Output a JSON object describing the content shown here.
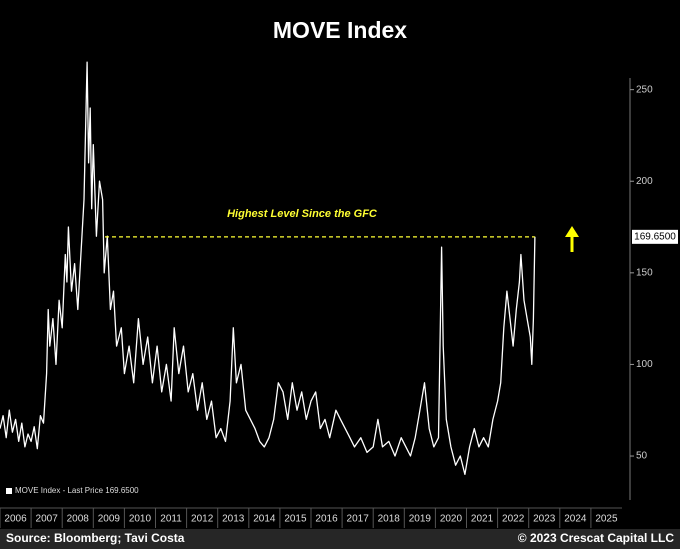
{
  "chart_data": {
    "type": "line",
    "title": "MOVE Index",
    "annotation": "Highest Level Since the GFC",
    "legend_label": "MOVE Index - Last Price 169.6500",
    "last_value_label": {
      "value": 169.65,
      "label": "169.6500"
    },
    "source": "Source: Bloomberg; Tavi Costa",
    "copyright": "© 2023 Crescat Capital LLC",
    "xlim": [
      2006,
      2026
    ],
    "xticks": [
      2006,
      2007,
      2008,
      2009,
      2010,
      2011,
      2012,
      2013,
      2014,
      2015,
      2016,
      2017,
      2018,
      2019,
      2020,
      2021,
      2022,
      2023,
      2024,
      2025
    ],
    "ylim": [
      26,
      270
    ],
    "yticks": [
      50,
      100,
      150,
      200,
      250
    ],
    "series": [
      {
        "name": "MOVE Index",
        "color": "#ffffff",
        "x": [
          2006.0,
          2006.1,
          2006.2,
          2006.3,
          2006.4,
          2006.5,
          2006.6,
          2006.7,
          2006.8,
          2006.9,
          2007.0,
          2007.1,
          2007.2,
          2007.3,
          2007.4,
          2007.5,
          2007.55,
          2007.6,
          2007.7,
          2007.8,
          2007.9,
          2008.0,
          2008.1,
          2008.15,
          2008.2,
          2008.3,
          2008.4,
          2008.5,
          2008.6,
          2008.7,
          2008.8,
          2008.85,
          2008.9,
          2008.95,
          2009.0,
          2009.1,
          2009.2,
          2009.3,
          2009.35,
          2009.45,
          2009.55,
          2009.65,
          2009.75,
          2009.9,
          2010.0,
          2010.15,
          2010.3,
          2010.45,
          2010.6,
          2010.75,
          2010.9,
          2011.05,
          2011.2,
          2011.35,
          2011.5,
          2011.6,
          2011.75,
          2011.9,
          2012.05,
          2012.2,
          2012.35,
          2012.5,
          2012.65,
          2012.8,
          2012.95,
          2013.1,
          2013.25,
          2013.4,
          2013.5,
          2013.6,
          2013.75,
          2013.9,
          2014.05,
          2014.2,
          2014.35,
          2014.5,
          2014.65,
          2014.8,
          2014.95,
          2015.1,
          2015.25,
          2015.4,
          2015.55,
          2015.7,
          2015.85,
          2016.0,
          2016.15,
          2016.3,
          2016.45,
          2016.6,
          2016.8,
          2016.95,
          2017.1,
          2017.25,
          2017.4,
          2017.6,
          2017.8,
          2018.0,
          2018.15,
          2018.3,
          2018.5,
          2018.7,
          2018.9,
          2019.05,
          2019.2,
          2019.35,
          2019.5,
          2019.65,
          2019.8,
          2019.95,
          2020.1,
          2020.2,
          2020.25,
          2020.35,
          2020.5,
          2020.65,
          2020.8,
          2020.95,
          2021.1,
          2021.25,
          2021.4,
          2021.55,
          2021.7,
          2021.85,
          2022.0,
          2022.1,
          2022.2,
          2022.3,
          2022.4,
          2022.5,
          2022.6,
          2022.7,
          2022.75,
          2022.85,
          2022.95,
          2023.05,
          2023.1,
          2023.15,
          2023.2
        ],
        "values": [
          65,
          72,
          60,
          75,
          63,
          70,
          58,
          68,
          55,
          62,
          58,
          66,
          54,
          72,
          68,
          95,
          130,
          110,
          125,
          100,
          135,
          120,
          160,
          145,
          175,
          140,
          155,
          130,
          160,
          190,
          265,
          210,
          240,
          185,
          220,
          170,
          200,
          190,
          150,
          170,
          130,
          140,
          110,
          120,
          95,
          110,
          90,
          125,
          100,
          115,
          90,
          110,
          85,
          100,
          80,
          120,
          95,
          110,
          85,
          95,
          75,
          90,
          70,
          80,
          60,
          65,
          58,
          80,
          120,
          90,
          100,
          75,
          70,
          65,
          58,
          55,
          60,
          70,
          90,
          85,
          70,
          90,
          75,
          85,
          70,
          80,
          85,
          65,
          70,
          60,
          75,
          70,
          65,
          60,
          55,
          60,
          52,
          55,
          70,
          55,
          58,
          50,
          60,
          55,
          50,
          60,
          75,
          90,
          65,
          55,
          60,
          164,
          110,
          70,
          55,
          45,
          50,
          40,
          55,
          65,
          55,
          60,
          55,
          70,
          80,
          90,
          120,
          140,
          125,
          110,
          130,
          145,
          160,
          135,
          125,
          115,
          100,
          125,
          169.65
        ]
      }
    ]
  }
}
